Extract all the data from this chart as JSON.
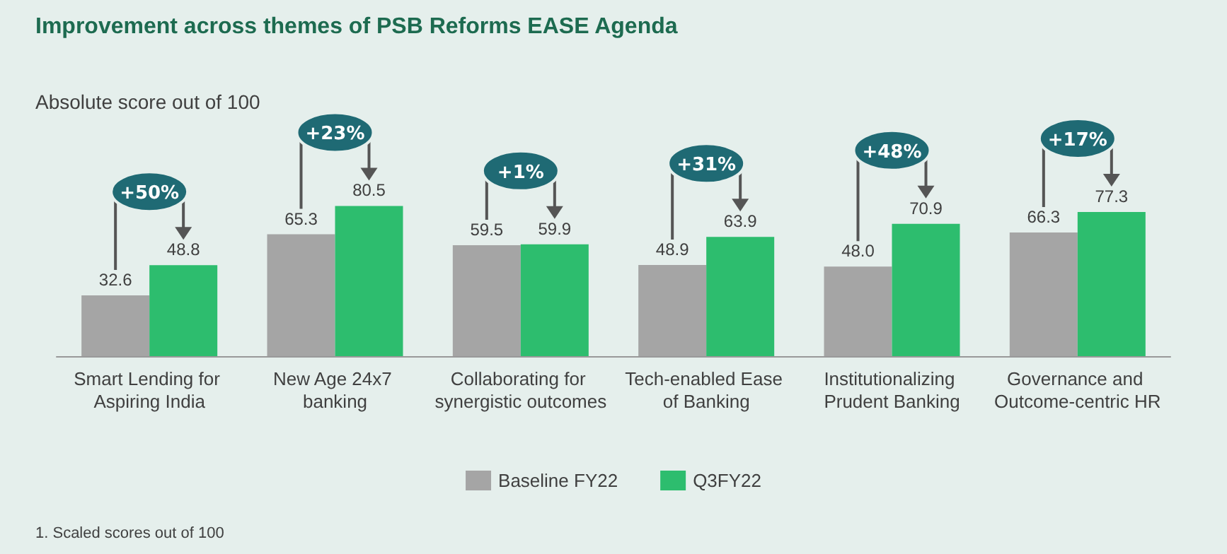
{
  "chart_data": {
    "type": "bar",
    "title": "Improvement across themes of PSB Reforms EASE Agenda",
    "subtitle": "Absolute score out of 100",
    "categories": [
      "Smart Lending for Aspiring India",
      "New Age 24x7 banking",
      "Collaborating for synergistic outcomes",
      "Tech-enabled Ease of Banking",
      "Institutionalizing Prudent Banking",
      "Governance and Outcome-centric HR"
    ],
    "series": [
      {
        "name": "Baseline FY22",
        "color": "#a5a5a5",
        "values": [
          32.6,
          65.3,
          59.5,
          48.9,
          48.0,
          66.3
        ],
        "value_labels": [
          "32.6",
          "65.3",
          "59.5",
          "48.9",
          "48.0",
          "66.3"
        ]
      },
      {
        "name": "Q3FY22",
        "color": "#2dbd6e",
        "values": [
          48.8,
          80.5,
          59.9,
          63.9,
          70.9,
          77.3
        ],
        "value_labels": [
          "48.8",
          "80.5",
          "59.9",
          "63.9",
          "70.9",
          "77.3"
        ]
      }
    ],
    "annotations": [
      "+50%",
      "+23%",
      "+1%",
      "+31%",
      "+48%",
      "+17%",
      "1. Scaled scores out of 100"
    ],
    "legend": "bottom"
  }
}
